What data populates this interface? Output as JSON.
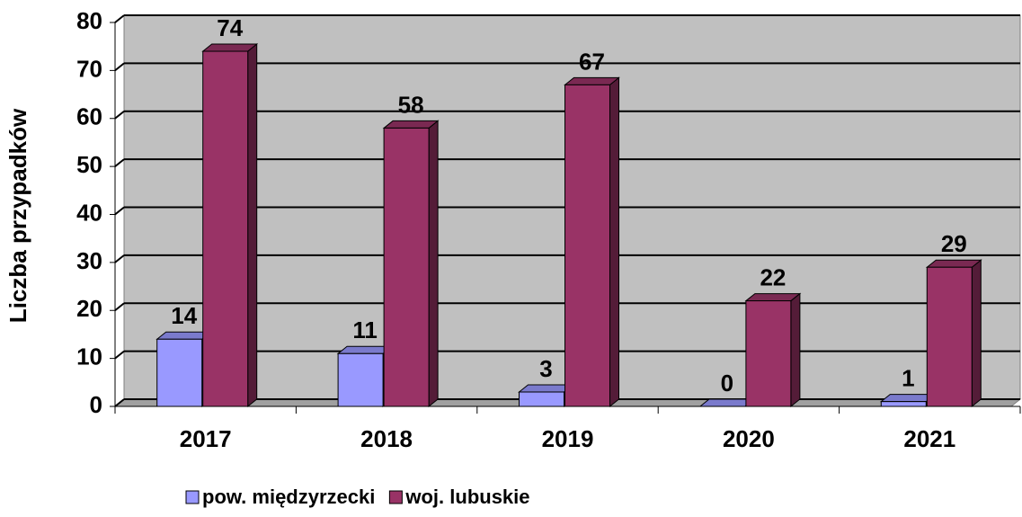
{
  "chart_data": {
    "type": "bar3d",
    "y_axis_label": "Liczba przypadków",
    "categories": [
      "2017",
      "2018",
      "2019",
      "2020",
      "2021"
    ],
    "series": [
      {
        "name": "pow. międzyrzecki",
        "color": "#9999ff",
        "values": [
          14,
          11,
          3,
          0,
          1
        ]
      },
      {
        "name": "woj. lubuskie",
        "color": "#993366",
        "values": [
          74,
          58,
          67,
          22,
          29
        ]
      }
    ],
    "ylim": [
      0,
      80
    ],
    "yticks": [
      0,
      10,
      20,
      30,
      40,
      50,
      60,
      70,
      80
    ],
    "grid": true,
    "legend": "bottom"
  }
}
